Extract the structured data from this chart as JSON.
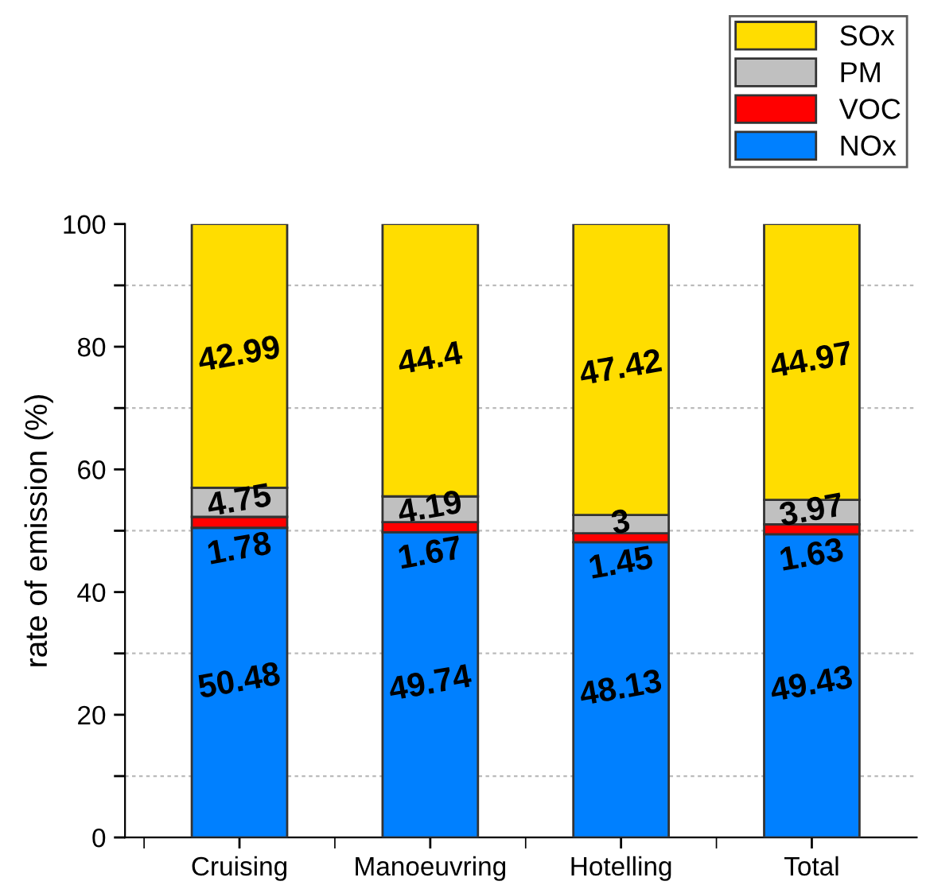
{
  "chart_data": {
    "type": "bar",
    "stacked": true,
    "ylabel": "rate of emission (%)",
    "categories": [
      "Cruising",
      "Manoeuvring",
      "Hotelling",
      "Total"
    ],
    "series": [
      {
        "name": "NOx",
        "color": "#0080ff",
        "values": [
          50.48,
          49.74,
          48.13,
          49.43
        ]
      },
      {
        "name": "VOC",
        "color": "#ff0000",
        "values": [
          1.78,
          1.67,
          1.45,
          1.63
        ]
      },
      {
        "name": "PM",
        "color": "#c0c0c0",
        "values": [
          4.75,
          4.19,
          3,
          3.97
        ]
      },
      {
        "name": "SOx",
        "color": "#ffdd00",
        "values": [
          42.99,
          44.4,
          47.42,
          44.97
        ]
      }
    ],
    "ylim": [
      0,
      100
    ],
    "yticks": [
      0,
      {
        "value": 10,
        "label": null
      },
      20,
      {
        "value": 30,
        "label": null
      },
      40,
      {
        "value": 50,
        "label": null
      },
      60,
      {
        "value": 70,
        "label": null
      },
      80,
      {
        "value": 90,
        "label": null
      },
      100
    ],
    "grid": "y",
    "legend": "top right",
    "data_labels": true
  }
}
